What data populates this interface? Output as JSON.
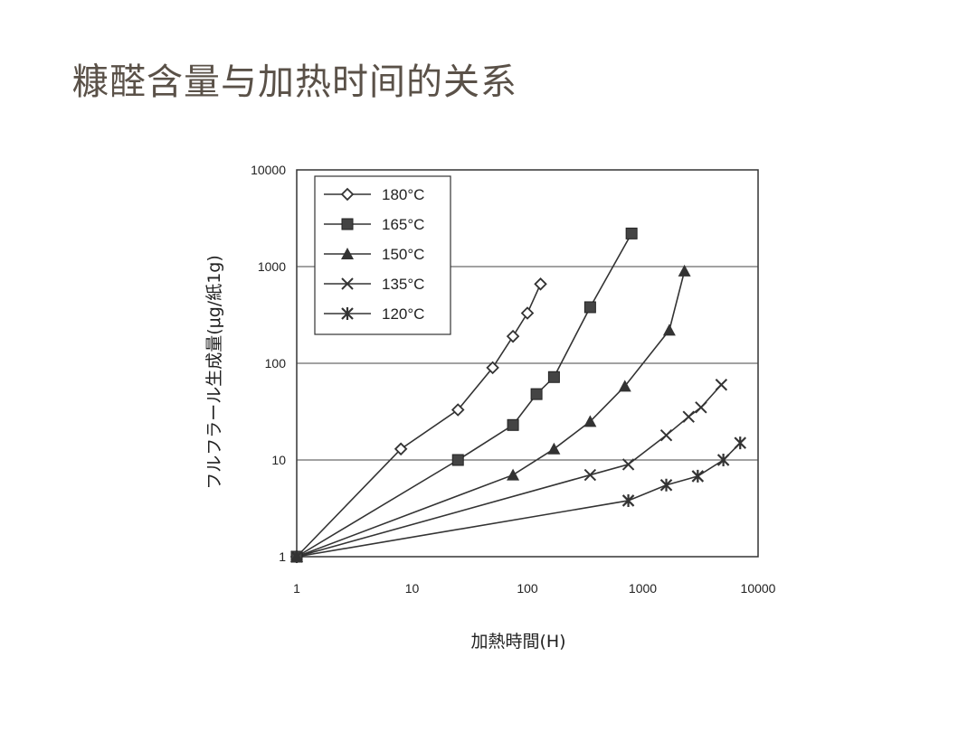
{
  "page": {
    "title": "糠醛含量与加热时间的关系"
  },
  "chart_data": {
    "type": "line",
    "xscale": "log",
    "yscale": "log",
    "xlim": [
      1,
      10000
    ],
    "ylim": [
      1,
      10000
    ],
    "xticks": [
      "1",
      "10",
      "100",
      "1000",
      "10000"
    ],
    "yticks": [
      "1",
      "10",
      "100",
      "1000",
      "10000"
    ],
    "xlabel": "加熱時間(H)",
    "ylabel": "フルフラール生成量(μg/紙1g)",
    "grid": "horizontal",
    "legend": "top-left",
    "series": [
      {
        "name": "180°C",
        "marker": "diamond",
        "x": [
          1,
          8,
          25,
          50,
          75,
          100,
          130
        ],
        "y": [
          1,
          13,
          33,
          90,
          190,
          330,
          660
        ]
      },
      {
        "name": "165°C",
        "marker": "square",
        "x": [
          1,
          25,
          75,
          120,
          170,
          350,
          800
        ],
        "y": [
          1,
          10,
          23,
          48,
          72,
          380,
          2200
        ]
      },
      {
        "name": "150°C",
        "marker": "triangle",
        "x": [
          1,
          75,
          170,
          350,
          700,
          1700,
          2300
        ],
        "y": [
          1,
          7,
          13,
          25,
          58,
          220,
          900
        ]
      },
      {
        "name": "135°C",
        "marker": "cross",
        "x": [
          1,
          350,
          750,
          1600,
          2500,
          3200,
          4800
        ],
        "y": [
          1,
          7,
          9,
          18,
          28,
          35,
          60
        ]
      },
      {
        "name": "120°C",
        "marker": "asterisk",
        "x": [
          1,
          750,
          1600,
          3000,
          5000,
          7000
        ],
        "y": [
          1,
          3.8,
          5.5,
          6.8,
          10,
          15
        ]
      }
    ]
  }
}
